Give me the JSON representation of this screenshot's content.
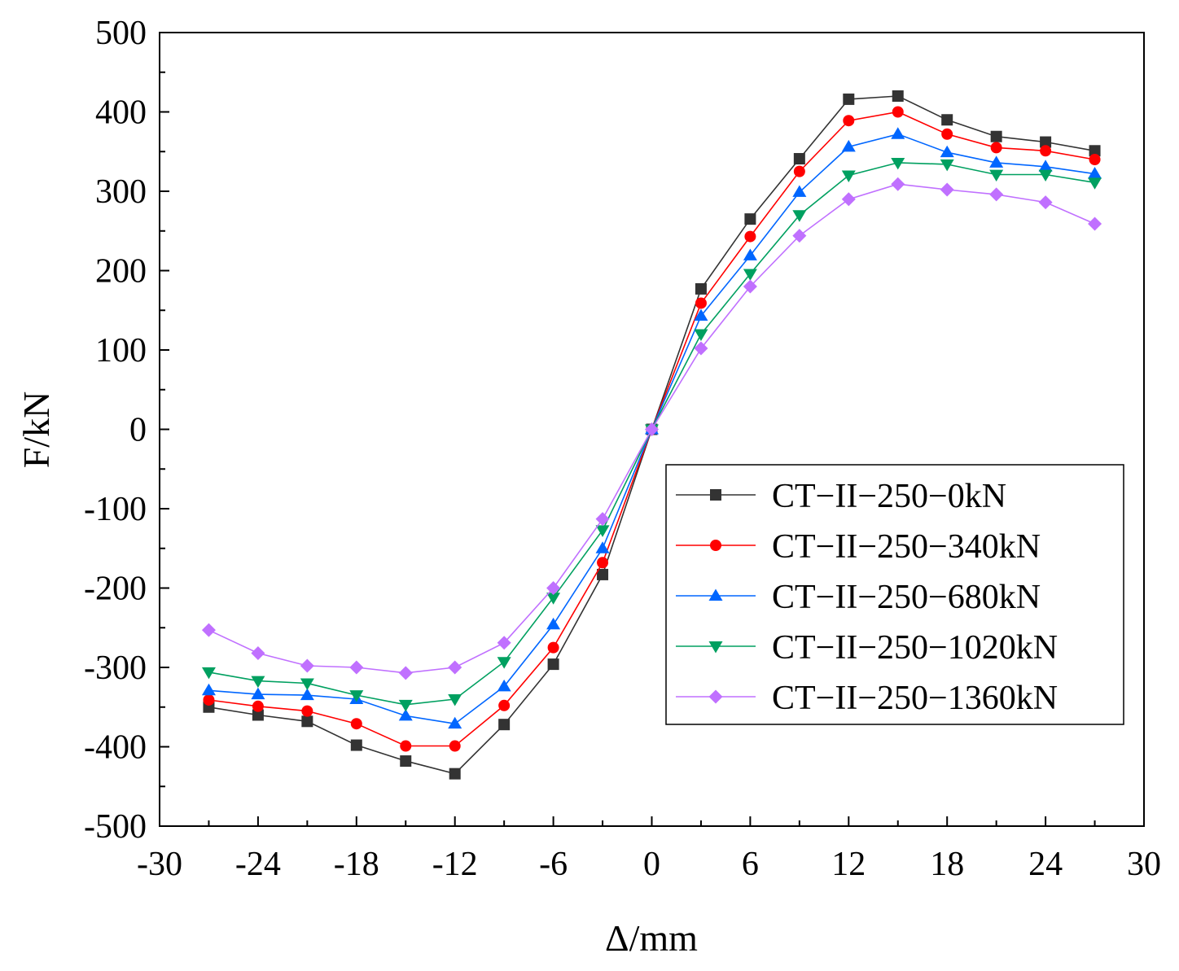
{
  "chart_data": {
    "type": "line",
    "title": "",
    "xlabel": "Δ/mm",
    "ylabel": "F/kN",
    "xlim": [
      -30,
      30
    ],
    "ylim": [
      -500,
      500
    ],
    "xticks": [
      -30,
      -24,
      -18,
      -12,
      -6,
      0,
      6,
      12,
      18,
      24,
      30
    ],
    "yticks": [
      -500,
      -400,
      -300,
      -200,
      -100,
      0,
      100,
      200,
      300,
      400,
      500
    ],
    "x": [
      -27,
      -24,
      -21,
      -18,
      -15,
      -12,
      -9,
      -6,
      -3,
      0,
      3,
      6,
      9,
      12,
      15,
      18,
      21,
      24,
      27
    ],
    "legend_position": "center-right",
    "series": [
      {
        "name": "CT−II−250−0kN",
        "color": "#333333",
        "marker": "square",
        "values": [
          -350,
          -360,
          -368,
          -398,
          -418,
          -434,
          -372,
          -296,
          -183,
          0,
          177,
          265,
          341,
          416,
          420,
          390,
          369,
          362,
          351
        ]
      },
      {
        "name": "CT−II−250−340kN",
        "color": "#ff0000",
        "marker": "circle",
        "values": [
          -341,
          -349,
          -355,
          -371,
          -399,
          -399,
          -348,
          -275,
          -168,
          0,
          159,
          243,
          325,
          389,
          400,
          372,
          355,
          351,
          340
        ]
      },
      {
        "name": "CT−II−250−680kN",
        "color": "#0066ff",
        "marker": "triangle-up",
        "values": [
          -329,
          -334,
          -335,
          -340,
          -361,
          -371,
          -324,
          -246,
          -150,
          0,
          143,
          219,
          299,
          356,
          372,
          349,
          336,
          331,
          322
        ]
      },
      {
        "name": "CT−II−250−1020kN",
        "color": "#00a060",
        "marker": "triangle-down",
        "values": [
          -306,
          -317,
          -320,
          -335,
          -347,
          -340,
          -293,
          -212,
          -127,
          0,
          120,
          196,
          270,
          320,
          336,
          334,
          321,
          321,
          311
        ]
      },
      {
        "name": "CT−II−250−1360kN",
        "color": "#c070ff",
        "marker": "diamond",
        "values": [
          -253,
          -282,
          -298,
          -300,
          -307,
          -300,
          -269,
          -200,
          -113,
          0,
          102,
          180,
          244,
          290,
          309,
          302,
          296,
          286,
          259
        ]
      }
    ]
  }
}
